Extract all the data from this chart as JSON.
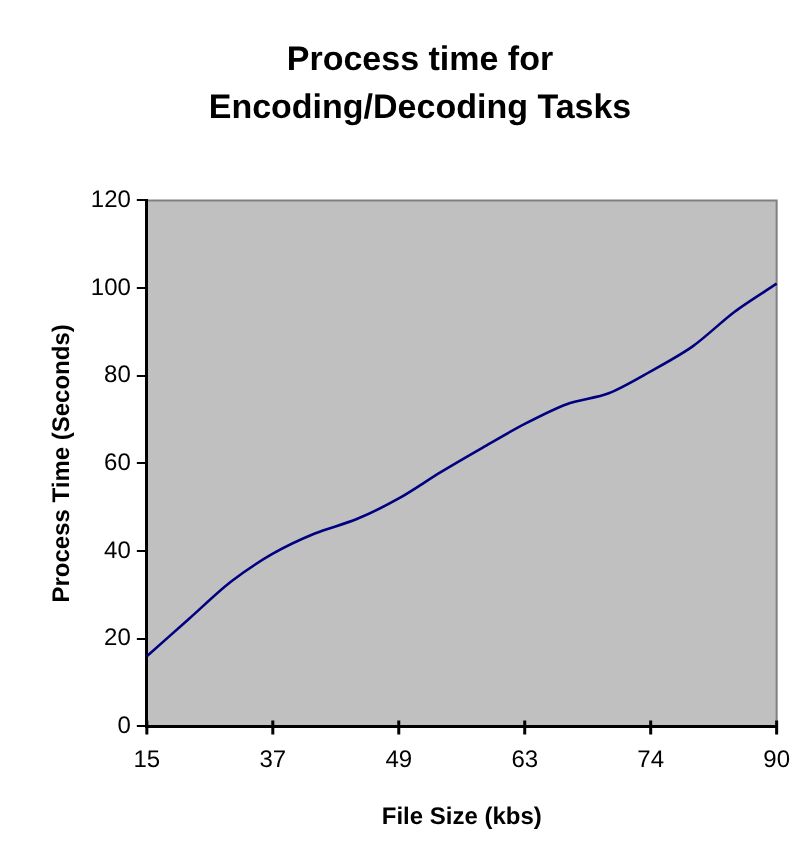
{
  "chart_data": {
    "type": "line",
    "title": "Process time for\nEncoding/Decoding Tasks",
    "xlabel": "File Size (kbs)",
    "ylabel": "Process Time (Seconds)",
    "categories": [
      "15",
      null,
      null,
      "37",
      null,
      null,
      "49",
      null,
      null,
      "63",
      null,
      null,
      "74",
      null,
      null,
      "90"
    ],
    "series": [
      {
        "color": "#000080",
        "values": [
          16,
          24.5,
          33,
          39.4,
          44,
          47.3,
          52,
          58,
          63.6,
          69,
          73.5,
          76,
          81,
          86.7,
          94.6,
          101
        ]
      }
    ],
    "ylim": [
      0,
      120
    ],
    "yticks": [
      0,
      20,
      40,
      60,
      80,
      100,
      120
    ],
    "grid": false,
    "legend": false,
    "marker": "none",
    "line_style": "solid"
  }
}
